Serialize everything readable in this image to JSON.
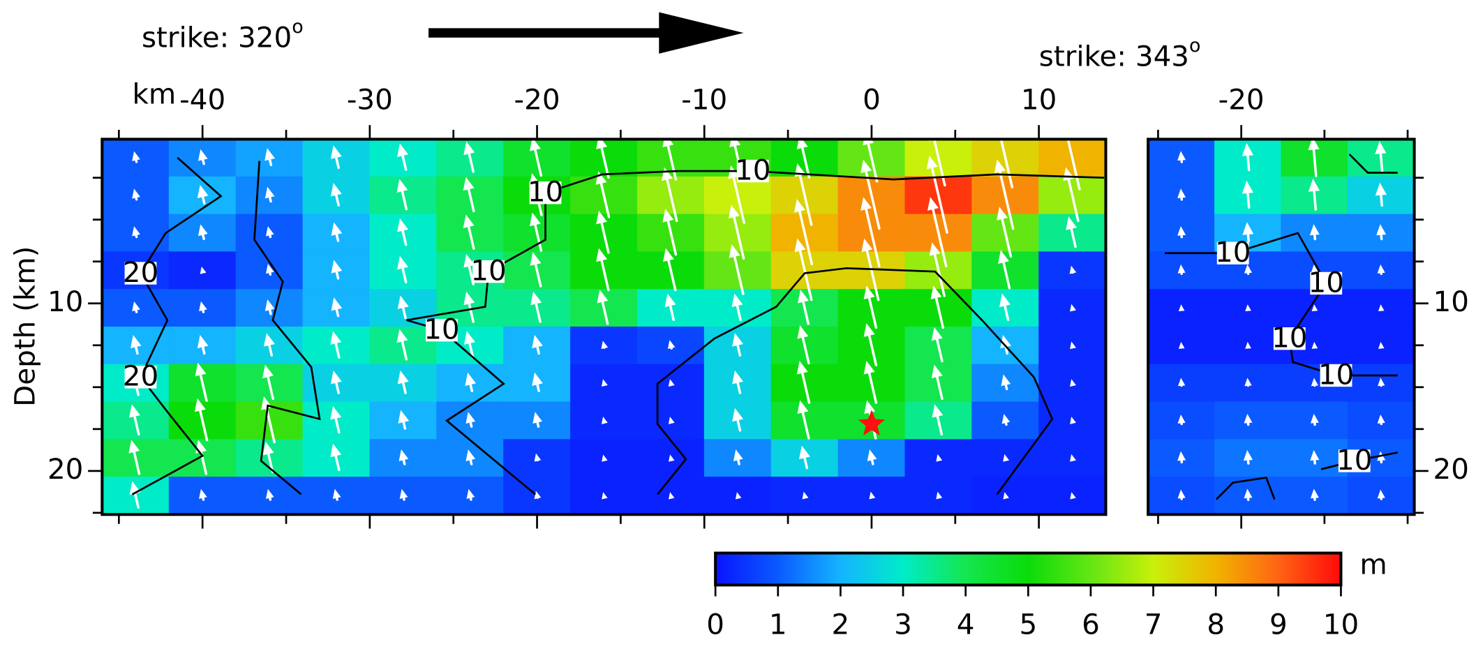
{
  "chart_data": [
    {
      "type": "heatmap",
      "title": "strike: 320",
      "title_sup": "o",
      "xlabel": "km",
      "ylabel": "Depth (km)",
      "xlim": [
        -46,
        14
      ],
      "ylim": [
        0.2,
        22.6
      ],
      "invert_y": true,
      "xticks": [
        -40,
        -30,
        -20,
        -10,
        0,
        10
      ],
      "xminor": [
        -45,
        -35,
        -25,
        -15,
        -5,
        5
      ],
      "yticks": [
        10,
        20
      ],
      "yminor": [
        2.5,
        5,
        7.5,
        12.5,
        15,
        17.5,
        22.5
      ],
      "ytick_side": "left",
      "rake": 103,
      "values": [
        [
          1,
          1.5,
          1.8,
          2.5,
          3,
          3.5,
          4.5,
          5,
          5.5,
          5.5,
          5,
          6,
          7,
          7.5,
          8
        ],
        [
          1,
          2,
          1.5,
          2.5,
          3.5,
          4,
          5,
          5.5,
          6.5,
          7,
          7.5,
          8.5,
          9.5,
          8.5,
          6.5
        ],
        [
          1,
          1.5,
          1,
          2,
          3,
          4,
          4.5,
          5,
          5.5,
          6.5,
          8,
          8.5,
          8.5,
          6,
          3.5
        ],
        [
          0.5,
          0.3,
          1,
          2,
          3,
          3.5,
          4,
          5,
          5,
          6,
          7.5,
          7.5,
          6.5,
          4.5,
          0.5
        ],
        [
          1,
          1,
          1.5,
          2,
          2.5,
          3.5,
          3.5,
          4,
          3,
          3,
          4,
          5,
          5,
          3,
          0.3
        ],
        [
          2,
          2,
          2.5,
          3,
          3.5,
          3,
          2,
          0.5,
          0.7,
          2.5,
          4.5,
          5,
          4,
          2,
          0.3
        ],
        [
          3,
          4.5,
          4,
          2.5,
          2.5,
          2,
          2,
          0.3,
          0.3,
          2.5,
          5,
          5,
          4,
          1.5,
          0.3
        ],
        [
          3.5,
          5,
          5.5,
          3,
          2,
          1.5,
          1.5,
          0.3,
          0.3,
          2.5,
          4.5,
          4.5,
          3.5,
          1,
          0.3
        ],
        [
          4,
          4,
          3.5,
          3,
          1.5,
          1.5,
          0.5,
          0.2,
          0.2,
          1.5,
          2.5,
          1.5,
          0.3,
          0.3,
          0.3
        ],
        [
          3,
          1,
          1,
          1,
          1,
          1,
          0.5,
          0.2,
          0.2,
          0.2,
          0.3,
          0.3,
          0.3,
          0.2,
          0.2
        ]
      ],
      "contours": [
        {
          "labels": [
            "10",
            "10",
            "10",
            "10"
          ],
          "x": [
            -20.1,
            -25.4,
            -22.0,
            -25.7,
            -27.8,
            -23.1,
            -22.9,
            -19.5,
            -19.5,
            -16.1,
            -11.6,
            -7.1,
            1.3,
            7.5,
            13.9
          ],
          "y": [
            21.4,
            17.0,
            14.8,
            11.6,
            11.0,
            10.2,
            8.1,
            6.2,
            3.4,
            2.3,
            2.1,
            2.1,
            2.6,
            2.3,
            2.5
          ]
        },
        {
          "x": [
            -12.8,
            -11.1,
            -12.8,
            -12.8,
            -9.4,
            -5.7,
            -4.0,
            -1.5,
            3.8,
            6.6,
            9.7,
            10.8,
            7.5
          ],
          "y": [
            21.4,
            19.3,
            17.2,
            14.8,
            12.1,
            10.2,
            8.2,
            7.9,
            8.1,
            11.0,
            14.4,
            16.9,
            21.4
          ]
        },
        {
          "labels": [
            "20",
            "20"
          ],
          "x": [
            -44.2,
            -40.0,
            -42.0,
            -43.7,
            -42.1,
            -43.7,
            -42.2,
            -38.9,
            -41.5
          ],
          "y": [
            21.4,
            19.1,
            16.6,
            14.4,
            11.0,
            8.2,
            5.8,
            3.6,
            1.3
          ]
        },
        {
          "x": [
            -34.1,
            -36.5,
            -36.1,
            -33.0,
            -33.5,
            -35.8,
            -35.2,
            -36.9,
            -36.6
          ],
          "y": [
            21.4,
            19.4,
            16.1,
            16.9,
            13.8,
            11.0,
            8.7,
            6.2,
            1.5
          ]
        }
      ],
      "hypocenter": {
        "x": 0,
        "y": 17.2,
        "color": "#ff1010"
      }
    },
    {
      "type": "heatmap",
      "title": "strike: 343",
      "title_sup": "o",
      "xlim": [
        -25.6,
        -9.6
      ],
      "ylim": [
        0.2,
        22.6
      ],
      "invert_y": true,
      "xticks": [
        -20
      ],
      "xminor": [
        -25,
        -15,
        -10
      ],
      "yticks": [
        10,
        20
      ],
      "yminor": [
        2.5,
        5,
        7.5,
        12.5,
        15,
        17.5,
        22.5
      ],
      "ytick_side": "right",
      "rake": 95,
      "values": [
        [
          1,
          3,
          4.5,
          3.5
        ],
        [
          1,
          3,
          3.5,
          2.5
        ],
        [
          1,
          2,
          1.5,
          1.5
        ],
        [
          0.8,
          0.8,
          0.8,
          0.8
        ],
        [
          0.2,
          0.2,
          0.2,
          0.2
        ],
        [
          0.2,
          0.2,
          0.2,
          0.2
        ],
        [
          0.6,
          0.6,
          0.6,
          0.6
        ],
        [
          0.8,
          1,
          1,
          0.8
        ],
        [
          1,
          1.3,
          1.3,
          1
        ],
        [
          0.8,
          1,
          1,
          0.8
        ]
      ],
      "contours": [
        {
          "labels": [
            "10",
            "10",
            "10",
            "10"
          ],
          "x": [
            -24.6,
            -20.5,
            -16.6,
            -14.9,
            -17.1,
            -16.9,
            -14.3,
            -10.6
          ],
          "y": [
            7.0,
            7.0,
            5.8,
            8.8,
            12.1,
            13.5,
            14.3,
            14.3
          ]
        },
        {
          "x": [
            -21.5,
            -20.5,
            -18.5,
            -18.0
          ],
          "y": [
            21.7,
            20.7,
            20.4,
            21.7
          ]
        },
        {
          "labels": [
            "10"
          ],
          "x": [
            -15.2,
            -13.2,
            -10.6
          ],
          "y": [
            19.9,
            19.4,
            18.9
          ]
        },
        {
          "x": [
            -13.5,
            -12.4,
            -10.6
          ],
          "y": [
            1.1,
            2.2,
            2.2
          ]
        }
      ]
    }
  ],
  "colorbar": {
    "clim": [
      0,
      10
    ],
    "ticks": [
      0,
      1,
      2,
      3,
      4,
      5,
      6,
      7,
      8,
      9,
      10
    ],
    "label": "m",
    "colors": [
      "#0a14ff",
      "#0a5aff",
      "#14b4ff",
      "#00ecc8",
      "#14e650",
      "#0adc0a",
      "#64e614",
      "#c8f00a",
      "#f0b400",
      "#ff6414",
      "#ff0a0a"
    ]
  }
}
